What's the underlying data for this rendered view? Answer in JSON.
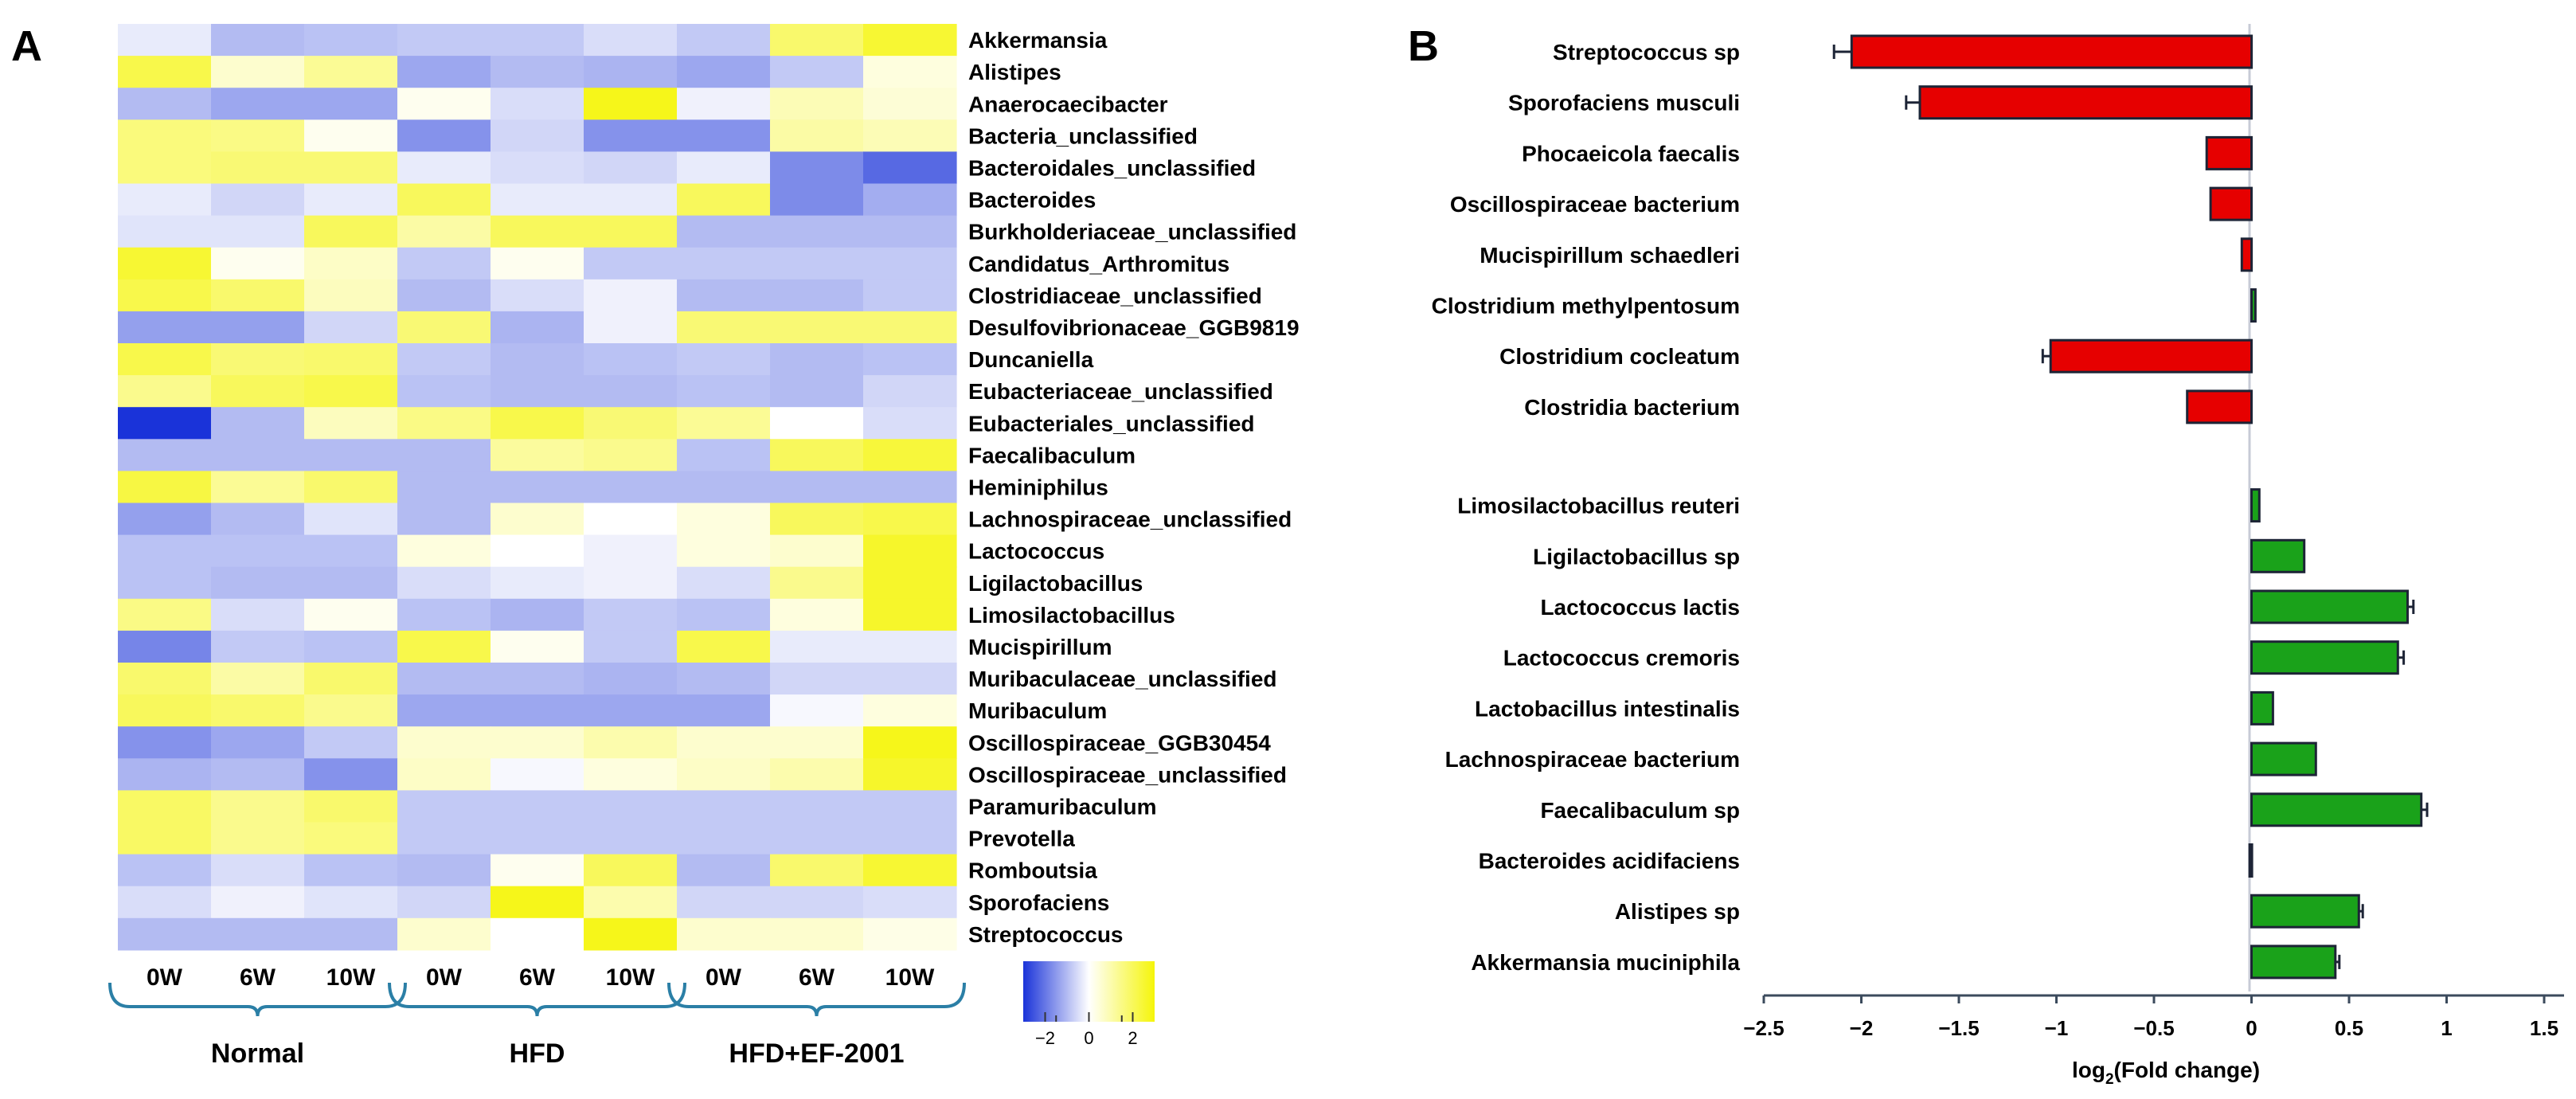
{
  "chart_data": [
    {
      "type": "heatmap",
      "panel_label": "A",
      "rows": [
        "Akkermansia",
        "Alistipes",
        "Anaerocaecibacter",
        "Bacteria_unclassified",
        "Bacteroidales_unclassified",
        "Bacteroides",
        "Burkholderiaceae_unclassified",
        "Candidatus_Arthromitus",
        "Clostridiaceae_unclassified",
        "Desulfovibrionaceae_GGB9819",
        "Duncaniella",
        "Eubacteriaceae_unclassified",
        "Eubacteriales_unclassified",
        "Faecalibaculum",
        "Heminiphilus",
        "Lachnospiraceae_unclassified",
        "Lactococcus",
        "Ligilactobacillus",
        "Limosilactobacillus",
        "Mucispirillum",
        "Muribaculaceae_unclassified",
        "Muribaculum",
        "Oscillospiraceae_GGB30454",
        "Oscillospiraceae_unclassified",
        "Paramuribaculum",
        "Prevotella",
        "Romboutsia",
        "Sporofaciens",
        "Streptococcus"
      ],
      "columns": [
        "0W",
        "6W",
        "10W",
        "0W",
        "6W",
        "10W",
        "0W",
        "6W",
        "10W"
      ],
      "groups": [
        {
          "name": "Normal",
          "columns": [
            "0W",
            "6W",
            "10W"
          ]
        },
        {
          "name": "HFD",
          "columns": [
            "0W",
            "6W",
            "10W"
          ]
        },
        {
          "name": "HFD+EF-2001",
          "columns": [
            "0W",
            "6W",
            "10W"
          ]
        }
      ],
      "values": [
        [
          -0.3,
          -1.0,
          -0.9,
          -0.8,
          -0.8,
          -0.5,
          -0.8,
          1.8,
          2.5
        ],
        [
          2.2,
          0.6,
          1.3,
          -1.3,
          -1.0,
          -1.1,
          -1.3,
          -0.8,
          0.4
        ],
        [
          -1.0,
          -1.3,
          -1.3,
          0.2,
          -0.5,
          2.8,
          -0.2,
          0.9,
          0.5
        ],
        [
          1.6,
          1.5,
          0.2,
          -1.6,
          -0.6,
          -1.6,
          -1.6,
          1.1,
          0.9
        ],
        [
          1.6,
          1.7,
          1.7,
          -0.3,
          -0.5,
          -0.6,
          -0.3,
          -1.7,
          -2.2
        ],
        [
          -0.3,
          -0.6,
          -0.3,
          2.0,
          -0.3,
          -0.3,
          2.0,
          -1.7,
          -1.2
        ],
        [
          -0.4,
          -0.4,
          2.0,
          1.1,
          2.0,
          2.0,
          -1.0,
          -1.0,
          -1.0
        ],
        [
          2.5,
          0.2,
          0.7,
          -0.8,
          0.2,
          -0.8,
          -0.8,
          -0.8,
          -0.8
        ],
        [
          2.2,
          1.8,
          0.8,
          -1.0,
          -0.5,
          -0.2,
          -1.0,
          -1.0,
          -0.8
        ],
        [
          -1.4,
          -1.4,
          -0.6,
          1.7,
          -1.1,
          -0.2,
          1.7,
          1.7,
          1.7
        ],
        [
          2.2,
          1.7,
          1.8,
          -0.8,
          -1.0,
          -0.9,
          -0.8,
          -1.0,
          -0.9
        ],
        [
          1.4,
          2.0,
          2.2,
          -0.9,
          -1.0,
          -1.0,
          -0.9,
          -1.0,
          -0.6
        ],
        [
          -3.0,
          -1.0,
          0.8,
          1.5,
          2.2,
          1.7,
          1.3,
          0.0,
          -0.5
        ],
        [
          -1.0,
          -1.0,
          -1.0,
          -1.0,
          1.2,
          1.4,
          -0.9,
          2.0,
          2.4
        ],
        [
          2.3,
          1.3,
          1.8,
          -1.0,
          -1.0,
          -1.0,
          -1.0,
          -1.0,
          -1.0
        ],
        [
          -1.4,
          -1.0,
          -0.4,
          -1.0,
          0.6,
          0.0,
          0.4,
          2.0,
          2.2
        ],
        [
          -0.9,
          -0.9,
          -0.9,
          0.4,
          0.0,
          -0.2,
          0.4,
          0.6,
          2.6
        ],
        [
          -0.9,
          -1.0,
          -1.0,
          -0.5,
          -0.3,
          -0.2,
          -0.5,
          1.4,
          2.6
        ],
        [
          1.5,
          -0.5,
          0.2,
          -0.9,
          -1.1,
          -0.8,
          -0.9,
          0.4,
          2.6
        ],
        [
          -1.8,
          -0.8,
          -0.9,
          2.2,
          0.2,
          -0.8,
          2.2,
          -0.3,
          -0.3
        ],
        [
          1.8,
          1.1,
          1.8,
          -1.0,
          -1.0,
          -1.1,
          -1.0,
          -0.6,
          -0.6
        ],
        [
          2.0,
          1.8,
          1.4,
          -1.3,
          -1.3,
          -1.3,
          -1.3,
          -0.1,
          0.4
        ],
        [
          -1.6,
          -1.3,
          -0.8,
          0.6,
          0.6,
          1.0,
          0.6,
          0.6,
          2.8
        ],
        [
          -1.1,
          -1.0,
          -1.6,
          0.7,
          -0.1,
          0.4,
          0.7,
          1.0,
          2.6
        ],
        [
          1.9,
          1.4,
          1.8,
          -0.8,
          -0.8,
          -0.8,
          -0.8,
          -0.8,
          -0.8
        ],
        [
          1.9,
          1.4,
          1.6,
          -0.8,
          -0.8,
          -0.8,
          -0.8,
          -0.8,
          -0.8
        ],
        [
          -0.9,
          -0.5,
          -0.9,
          -1.0,
          0.2,
          2.0,
          -1.0,
          1.8,
          2.5
        ],
        [
          -0.5,
          -0.2,
          -0.4,
          -0.6,
          2.8,
          1.0,
          -0.6,
          -0.6,
          -0.5
        ],
        [
          -1.0,
          -1.0,
          -1.0,
          0.6,
          0.0,
          2.8,
          0.6,
          0.6,
          0.3
        ]
      ],
      "color_scale": {
        "min": -3,
        "max": 3,
        "low": "#1a33d9",
        "mid": "#ffffff",
        "high": "#f5f50a"
      },
      "colorbar_ticks": [
        "−2",
        "0",
        "2"
      ],
      "colorbar_tick_values": [
        -2,
        0,
        2
      ]
    },
    {
      "type": "bar",
      "orientation": "horizontal",
      "panel_label": "B",
      "categories": [
        "Streptococcus sp",
        "Sporofaciens musculi",
        "Phocaeicola faecalis",
        "Oscillospiraceae bacterium",
        "Mucispirillum schaedleri",
        "Clostridium methylpentosum",
        "Clostridium cocleatum",
        "Clostridia bacterium",
        "Limosilactobacillus reuteri",
        "Ligilactobacillus sp",
        "Lactococcus lactis",
        "Lactococcus cremoris",
        "Lactobacillus intestinalis",
        "Lachnospiraceae bacterium",
        "Faecalibaculum sp",
        "Bacteroides acidifaciens",
        "Alistipes sp",
        "Akkermansia muciniphila"
      ],
      "values": [
        -2.05,
        -1.7,
        -0.23,
        -0.21,
        -0.05,
        0.02,
        -1.03,
        -0.33,
        0.04,
        0.27,
        0.8,
        0.75,
        0.11,
        0.33,
        0.87,
        -0.01,
        0.55,
        0.43
      ],
      "errors": [
        0.09,
        0.07,
        0.0,
        0.0,
        0.0,
        0.0,
        0.04,
        0.0,
        0.0,
        0.0,
        0.03,
        0.03,
        0.0,
        0.0,
        0.03,
        0.0,
        0.02,
        0.02
      ],
      "neg_color": "#e60000",
      "pos_color": "#1aa21a",
      "xlim": [
        -2.5,
        1.5
      ],
      "xticks": [
        -2.5,
        -2,
        -1.5,
        -1,
        -0.5,
        0,
        0.5,
        1,
        1.5
      ],
      "xtick_labels": [
        "−2.5",
        "−2",
        "−1.5",
        "−1",
        "−0.5",
        "0",
        "0.5",
        "1",
        "1.5"
      ],
      "xlabel_main": "log",
      "xlabel_sub": "2",
      "xlabel_rest": "(Fold change)"
    }
  ]
}
